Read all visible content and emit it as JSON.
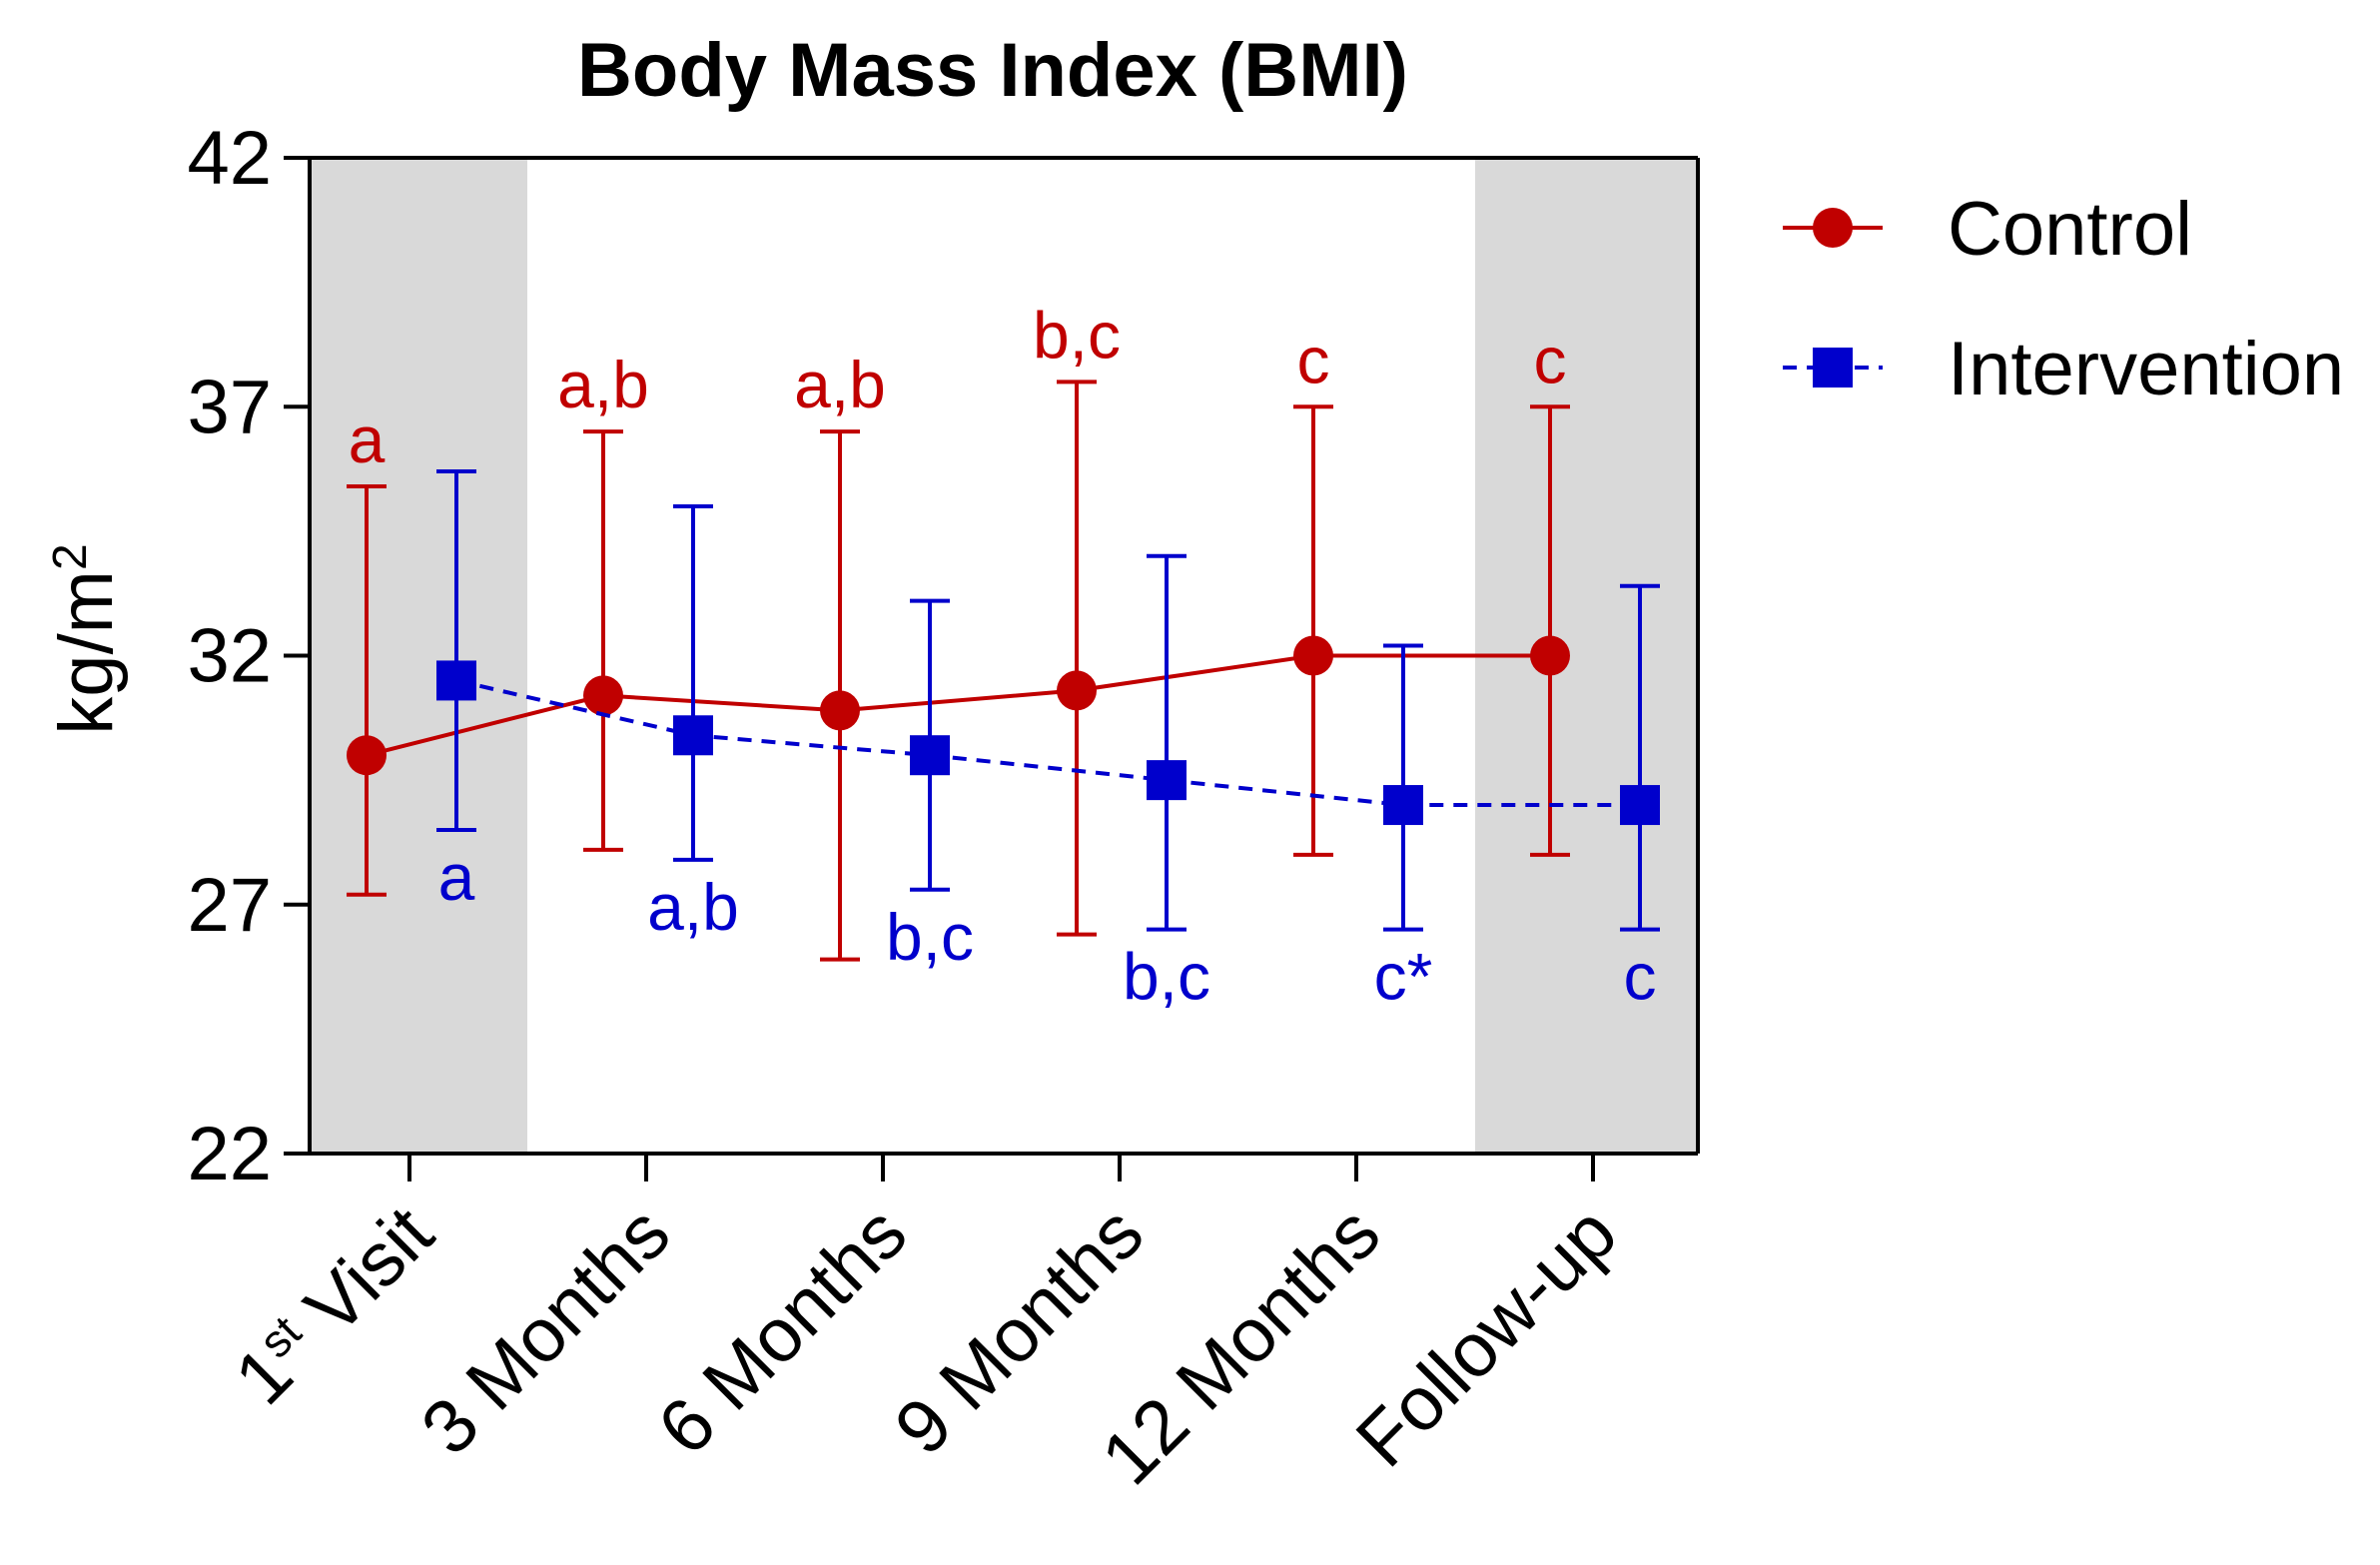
{
  "chart_data": {
    "type": "line",
    "title": "Body Mass Index (BMI)",
    "xlabel": "",
    "ylabel": "kg/m",
    "ylabel_superscript": "2",
    "ylim": [
      22,
      42
    ],
    "yticks": [
      22,
      27,
      32,
      37,
      42
    ],
    "categories": [
      "1st Visit",
      "3 Months",
      "6 Months",
      "9 Months",
      "12 Months",
      "Follow-up"
    ],
    "category_labels": [
      {
        "main": "1",
        "sup": "st",
        "rest": " Visit"
      },
      {
        "main": "3 Months",
        "sup": "",
        "rest": ""
      },
      {
        "main": "6 Months",
        "sup": "",
        "rest": ""
      },
      {
        "main": "9 Months",
        "sup": "",
        "rest": ""
      },
      {
        "main": "12 Months",
        "sup": "",
        "rest": ""
      },
      {
        "main": "Follow-up",
        "sup": "",
        "rest": ""
      }
    ],
    "shaded_categories": [
      "1st Visit",
      "Follow-up"
    ],
    "series": [
      {
        "name": "Control",
        "color": "#C00000",
        "marker": "circle",
        "line_style": "solid",
        "values": [
          30.0,
          31.2,
          30.9,
          31.3,
          32.0,
          32.0
        ],
        "error_upper": [
          35.4,
          36.5,
          36.5,
          37.5,
          37.0,
          37.0
        ],
        "error_lower": [
          27.2,
          28.1,
          25.9,
          26.4,
          28.0,
          28.0
        ],
        "labels": [
          "a",
          "a,b",
          "a,b",
          "b,c",
          "c",
          "c"
        ]
      },
      {
        "name": "Intervention",
        "color": "#0000CC",
        "marker": "square",
        "line_style": "dashed",
        "values": [
          31.5,
          30.4,
          30.0,
          29.5,
          29.0,
          29.0
        ],
        "error_upper": [
          35.7,
          35.0,
          33.1,
          34.0,
          32.2,
          33.4
        ],
        "error_lower": [
          28.5,
          27.9,
          27.3,
          26.5,
          26.5,
          26.5
        ],
        "labels": [
          "a",
          "a,b",
          "b,c",
          "b,c",
          "c*",
          "c"
        ]
      }
    ],
    "legend": "right"
  }
}
